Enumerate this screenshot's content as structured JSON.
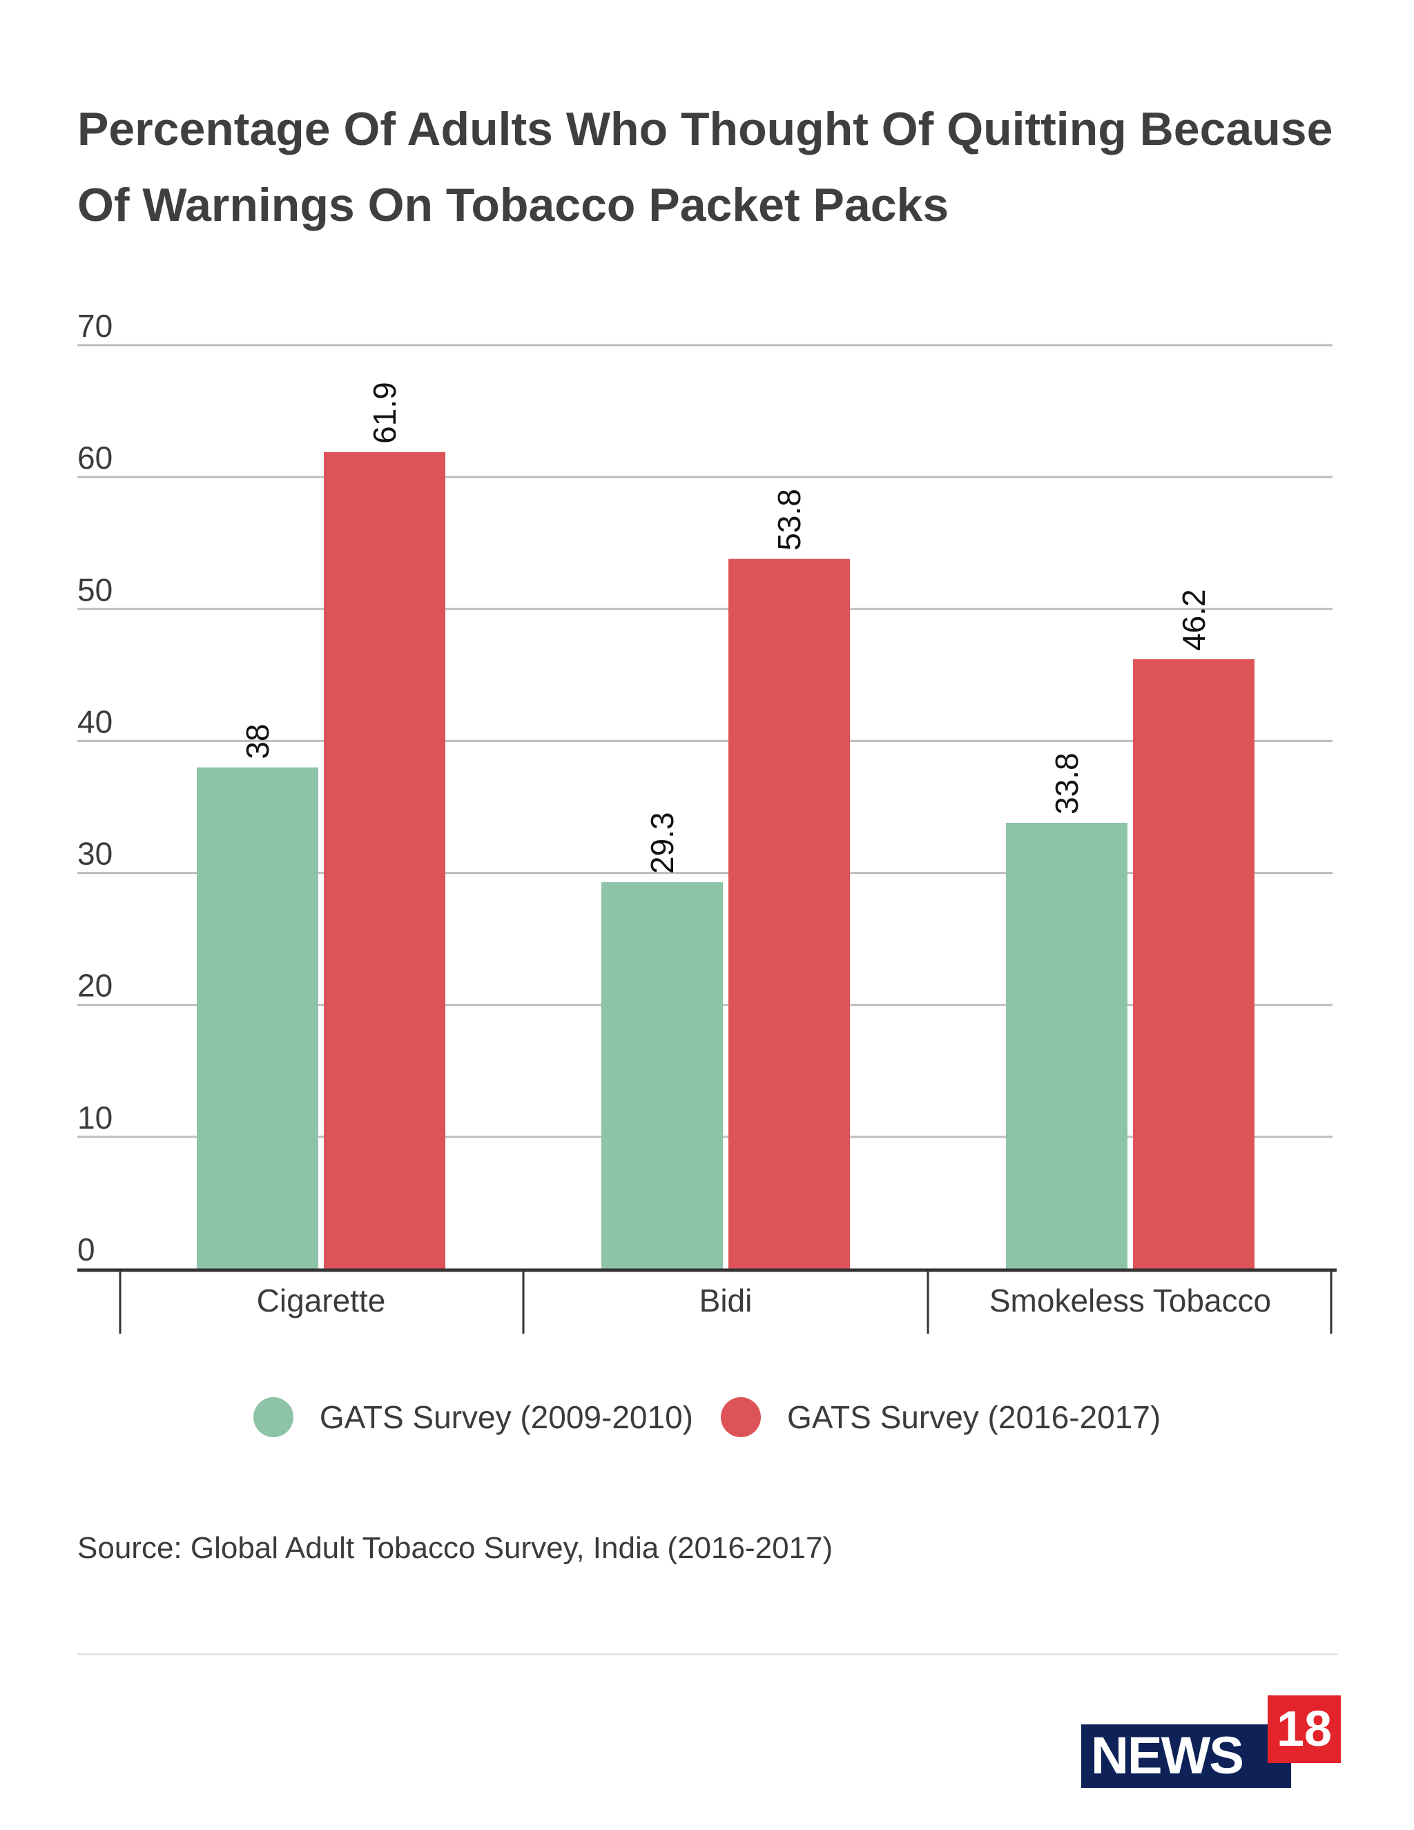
{
  "title": "Percentage Of Adults Who Thought Of Quitting Because Of Warnings On Tobacco Packet Packs",
  "source": "Source: Global Adult Tobacco Survey, India (2016-2017)",
  "logo": {
    "word": "NEWS",
    "number": "18"
  },
  "colors": {
    "series_2009_2010": "#8dc3a7",
    "series_2016_2017": "#dd5357",
    "grid": "#bdbdbd",
    "axis": "#333333",
    "text": "#3b3b3b"
  },
  "chart_data": {
    "type": "bar",
    "title": "Percentage Of Adults Who Thought Of Quitting Because Of Warnings On Tobacco Packet Packs",
    "xlabel": "",
    "ylabel": "",
    "categories": [
      "Cigarette",
      "Bidi",
      "Smokeless Tobacco"
    ],
    "series": [
      {
        "name": "GATS Survey (2009-2010)",
        "values": [
          38,
          29.3,
          33.8
        ],
        "labels": [
          "38",
          "29.3",
          "33.8"
        ],
        "color": "#8dc3a7"
      },
      {
        "name": "GATS Survey (2016-2017)",
        "values": [
          61.9,
          53.8,
          46.2
        ],
        "labels": [
          "61.9",
          "53.8",
          "46.2"
        ],
        "color": "#dd5357"
      }
    ],
    "ylim": [
      0,
      70
    ],
    "yticks": [
      0,
      10,
      20,
      30,
      40,
      50,
      60,
      70
    ],
    "ytick_labels": [
      "0",
      "10",
      "20",
      "30",
      "40",
      "50",
      "60",
      "70"
    ],
    "grid": true,
    "legend_position": "bottom"
  }
}
